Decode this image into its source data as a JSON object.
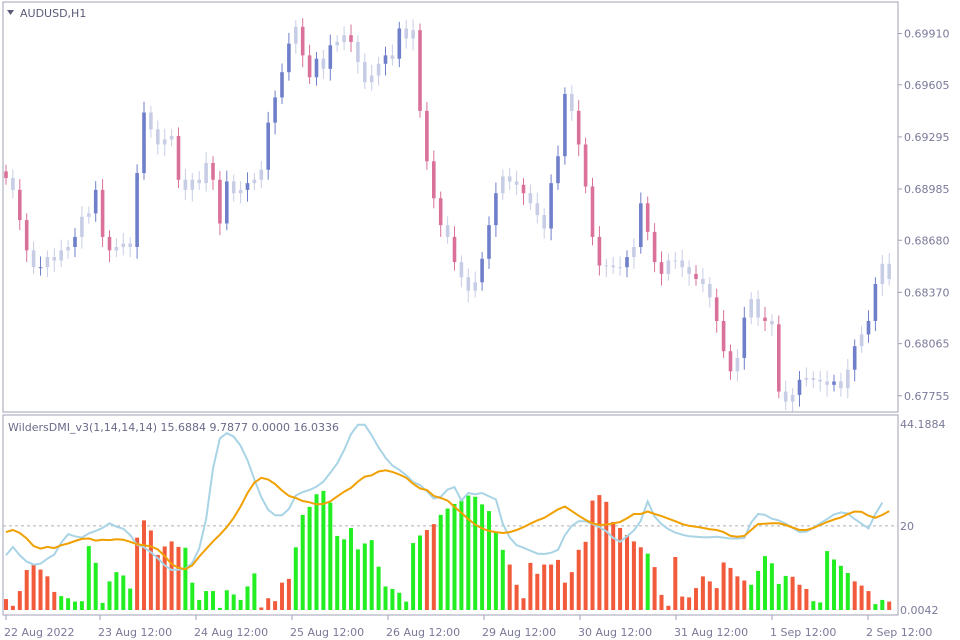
{
  "window": {
    "symbol_title": "AUDUSD,H1",
    "indicator_title": "WildersDMI_v3(1,14,14,14) 15.6884 9.7877 0.0000 16.0336"
  },
  "colors": {
    "background": "#ffffff",
    "frame": "#a0a0b4",
    "axis_text": "#7a7a9a",
    "bull_candle": "#6f7fc9",
    "bear_candle": "#d9719a",
    "neutral_candle": "#c8cde6",
    "hist_up": "#22ee22",
    "hist_down": "#f25a3c",
    "adx_line": "#f0a000",
    "di_line": "#a8d4e6",
    "level_line": "#b0b0b0"
  },
  "price_panel": {
    "y_axis_labels": [
      "0.69910",
      "0.69605",
      "0.69295",
      "0.68985",
      "0.68680",
      "0.68370",
      "0.68065",
      "0.67755"
    ]
  },
  "indicator_panel": {
    "y_axis_labels": [
      "44.1884",
      "20",
      "0.0042"
    ],
    "level": 20
  },
  "x_axis_labels": [
    "22 Aug 2022",
    "23 Aug 12:00",
    "24 Aug 12:00",
    "25 Aug 12:00",
    "26 Aug 12:00",
    "29 Aug 12:00",
    "30 Aug 12:00",
    "31 Aug 12:00",
    "1 Sep 12:00",
    "2 Sep 12:00"
  ],
  "chart_data": {
    "type": "line",
    "symbol": "AUDUSD",
    "timeframe": "H1",
    "price_ylim": [
      0.677,
      0.7005
    ],
    "price_series": [
      0.6905,
      0.6898,
      0.688,
      0.6862,
      0.6852,
      0.6852,
      0.6858,
      0.6856,
      0.6862,
      0.6864,
      0.687,
      0.6882,
      0.6884,
      0.6898,
      0.687,
      0.6862,
      0.6864,
      0.6866,
      0.6864,
      0.6908,
      0.6944,
      0.6934,
      0.6925,
      0.6928,
      0.693,
      0.6904,
      0.6898,
      0.6904,
      0.6902,
      0.6914,
      0.6904,
      0.6878,
      0.6903,
      0.6896,
      0.6898,
      0.6902,
      0.6904,
      0.691,
      0.6938,
      0.6953,
      0.6968,
      0.6985,
      0.6995,
      0.6978,
      0.6965,
      0.6976,
      0.697,
      0.6984,
      0.6986,
      0.699,
      0.6986,
      0.6974,
      0.6962,
      0.6966,
      0.6973,
      0.6978,
      0.6976,
      0.6994,
      0.6988,
      0.6993,
      0.6945,
      0.6915,
      0.6893,
      0.6877,
      0.687,
      0.6855,
      0.6846,
      0.6838,
      0.6843,
      0.6857,
      0.6877,
      0.6896,
      0.6906,
      0.6903,
      0.6901,
      0.6896,
      0.689,
      0.6883,
      0.6875,
      0.6902,
      0.6918,
      0.6955,
      0.6945,
      0.6925,
      0.69,
      0.687,
      0.6853,
      0.6853,
      0.6852,
      0.6852,
      0.6858,
      0.6864,
      0.689,
      0.6873,
      0.6855,
      0.6848,
      0.6856,
      0.6856,
      0.6852,
      0.6848,
      0.6845,
      0.6842,
      0.6834,
      0.682,
      0.6802,
      0.679,
      0.6798,
      0.6822,
      0.6833,
      0.6822,
      0.682,
      0.6818,
      0.6778,
      0.6772,
      0.6776,
      0.6785,
      0.6786,
      0.6785,
      0.6784,
      0.6782,
      0.6784,
      0.678,
      0.6791,
      0.6805,
      0.6812,
      0.682,
      0.6842,
      0.6854,
      0.6845
    ],
    "indicator_ylim": [
      0.0042,
      44.1884
    ],
    "series": [
      {
        "name": "",
        "role": "adx",
        "values": [
          18.5,
          19.0,
          18.3,
          17.0,
          15.2,
          14.6,
          15.0,
          14.7,
          15.4,
          15.8,
          16.4,
          16.9,
          17.0,
          16.5,
          16.7,
          16.6,
          16.8,
          16.7,
          16.2,
          15.6,
          15.4,
          15.1,
          14.4,
          12.8,
          10.9,
          10.0,
          9.7,
          10.6,
          12.7,
          14.5,
          16.3,
          17.9,
          19.7,
          21.9,
          24.6,
          27.8,
          30.3,
          31.4,
          31.0,
          29.9,
          28.4,
          27.1,
          26.6,
          25.9,
          25.6,
          25.1,
          25.2,
          25.8,
          27.0,
          28.1,
          29.0,
          30.5,
          31.7,
          32.0,
          32.9,
          33.2,
          32.8,
          32.2,
          31.4,
          30.0,
          28.9,
          28.5,
          27.1,
          26.6,
          26.0,
          24.5,
          23.1,
          21.6,
          20.3,
          19.4,
          18.8,
          18.5,
          18.3,
          18.5,
          19.0,
          19.7,
          20.5,
          21.3,
          21.9,
          22.9,
          23.9,
          24.6,
          23.5,
          22.4,
          21.4,
          20.6,
          20.2,
          20.3,
          20.6,
          20.9,
          21.8,
          22.8,
          22.8,
          23.4,
          22.8,
          22.3,
          21.7,
          21.1,
          20.4,
          20.0,
          19.8,
          19.5,
          19.2,
          19.0,
          18.5,
          17.6,
          17.4,
          17.6,
          19.0,
          20.4,
          20.5,
          20.6,
          20.6,
          20.2,
          19.6,
          19.0,
          19.0,
          19.5,
          20.2,
          20.9,
          21.5,
          22.0,
          22.8,
          23.4,
          23.3,
          22.4,
          21.9,
          22.6,
          23.5
        ]
      },
      {
        "name": "",
        "role": "di",
        "values": [
          13.0,
          15.0,
          13.0,
          11.5,
          10.8,
          11.0,
          12.2,
          13.2,
          16.0,
          18.0,
          17.5,
          17.2,
          18.2,
          18.8,
          19.5,
          20.6,
          19.8,
          19.3,
          17.8,
          15.5,
          14.9,
          13.7,
          12.3,
          10.6,
          9.5,
          9.6,
          9.8,
          11.2,
          14.6,
          21.6,
          33.6,
          40.8,
          42.0,
          41.2,
          39.0,
          35.6,
          31.0,
          26.8,
          23.8,
          22.5,
          22.5,
          24.0,
          27.2,
          28.0,
          28.5,
          29.3,
          30.5,
          32.6,
          34.8,
          38.0,
          41.8,
          44.0,
          44.0,
          41.5,
          38.6,
          36.2,
          34.3,
          33.3,
          32.0,
          30.4,
          29.7,
          28.2,
          26.5,
          26.9,
          28.6,
          29.2,
          26.0,
          27.8,
          27.5,
          27.8,
          27.0,
          26.3,
          20.5,
          17.2,
          15.4,
          14.8,
          14.1,
          13.4,
          13.3,
          13.6,
          14.3,
          17.8,
          20.0,
          21.1,
          21.1,
          20.4,
          19.7,
          18.7,
          17.1,
          16.2,
          17.5,
          18.9,
          21.2,
          25.8,
          22.2,
          20.4,
          19.2,
          18.4,
          17.9,
          17.5,
          17.4,
          17.3,
          17.3,
          17.4,
          17.2,
          17.0,
          17.0,
          17.1,
          20.8,
          22.8,
          22.6,
          21.7,
          21.3,
          20.5,
          19.5,
          18.5,
          18.6,
          19.5,
          20.6,
          21.6,
          22.7,
          23.2,
          22.9,
          21.6,
          20.5,
          19.4,
          22.8,
          25.5
        ]
      },
      {
        "name": "",
        "role": "histogram",
        "values": [
          2.6,
          1.0,
          4.5,
          9.5,
          11.0,
          9.6,
          8.0,
          4.3,
          3.3,
          2.8,
          2.0,
          2.1,
          15.2,
          11.2,
          1.7,
          6.8,
          9.0,
          8.2,
          5.1,
          17.2,
          21.3,
          18.9,
          13.1,
          15.1,
          16.3,
          15.0,
          14.8,
          6.5,
          2.4,
          4.5,
          4.5,
          0.5,
          4.7,
          3.7,
          2.4,
          5.6,
          8.7,
          0.6,
          2.8,
          2.1,
          6.5,
          7.4,
          14.9,
          22.6,
          24.5,
          27.5,
          28.3,
          25.5,
          17.6,
          16.8,
          19.5,
          14.4,
          15.8,
          16.6,
          10.3,
          5.6,
          5.0,
          4.1,
          2.0,
          15.9,
          17.7,
          19.0,
          20.4,
          22.6,
          24.1,
          25.2,
          26.0,
          27.2,
          26.9,
          25.1,
          23.5,
          18.5,
          14.3,
          10.8,
          6.0,
          2.8,
          11.2,
          8.6,
          10.8,
          10.8,
          11.9,
          6.5,
          9.0,
          14.3,
          16.2,
          26.0,
          27.3,
          25.7,
          20.9,
          19.5,
          17.8,
          16.3,
          14.9,
          13.4,
          10.2,
          3.6,
          1.0,
          12.6,
          3.2,
          3.0,
          5.2,
          8.0,
          6.8,
          5.2,
          11.3,
          10.0,
          8.0,
          7.0,
          6.0,
          9.3,
          12.8,
          11.1,
          6.2,
          8.1,
          7.9,
          6.0,
          5.0,
          2.1,
          1.8,
          14.0,
          12.0,
          10.5,
          8.8,
          6.8,
          5.8,
          4.5,
          1.4,
          2.4,
          2.0
        ]
      }
    ]
  }
}
